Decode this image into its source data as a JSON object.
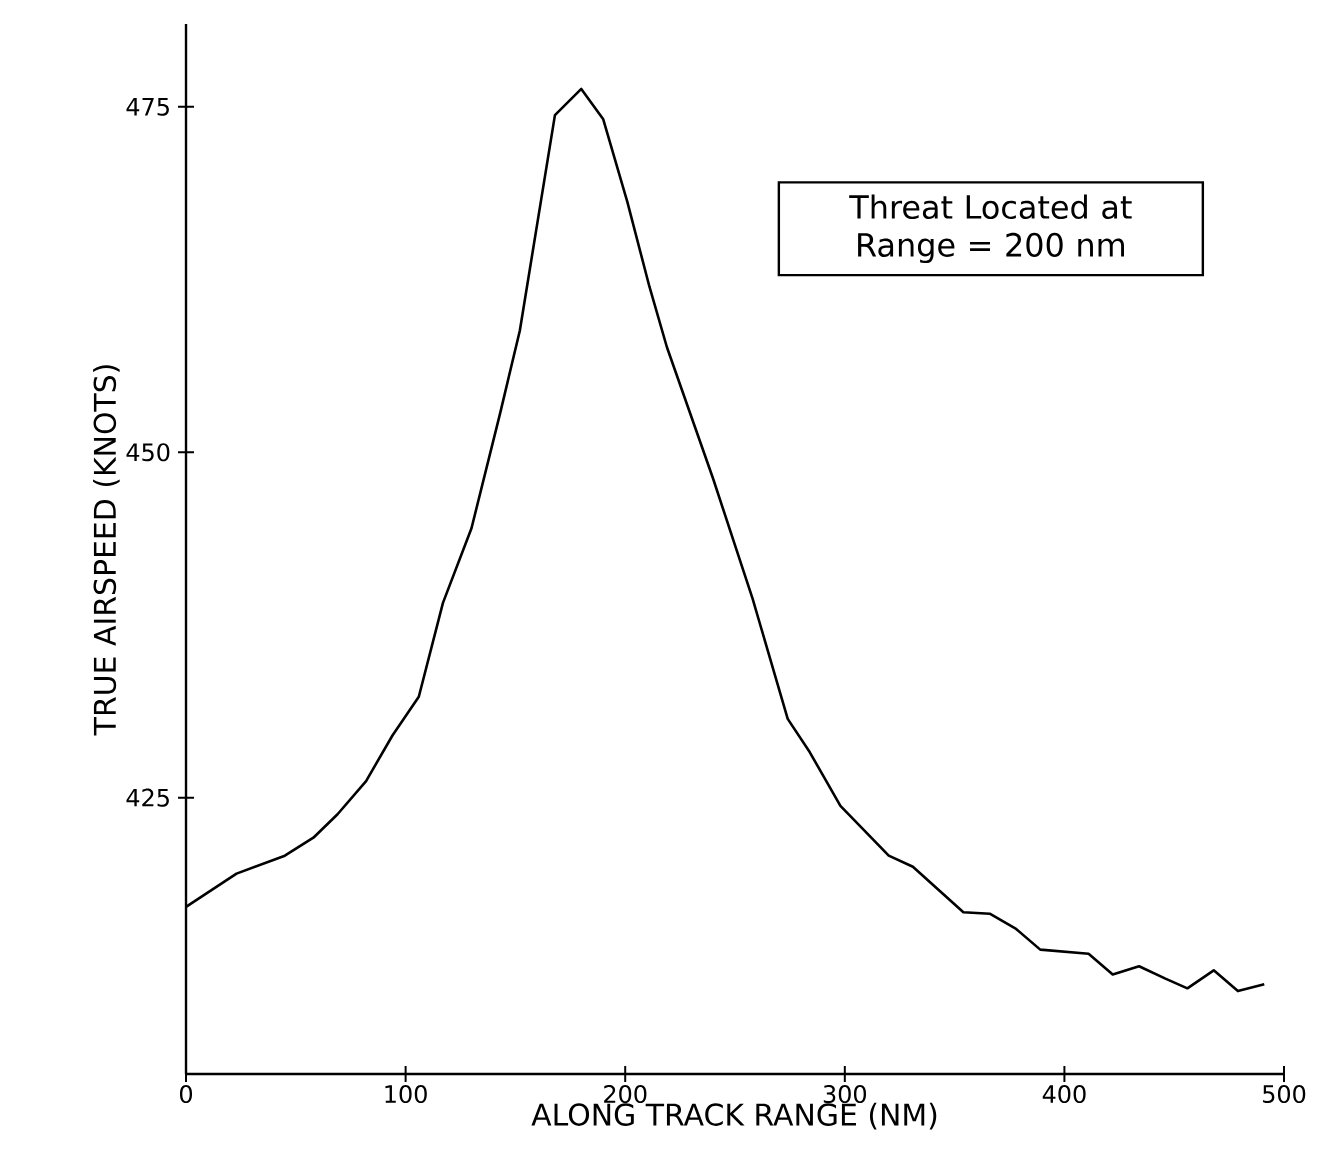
{
  "chart_data": {
    "type": "line",
    "xlabel": "ALONG TRACK RANGE (NM)",
    "ylabel": "TRUE AIRSPEED (KNOTS)",
    "annotations": [
      "Threat Located at Range = 200 nm"
    ],
    "xlim": [
      0,
      500
    ],
    "xticks": [
      0,
      100,
      200,
      300,
      400,
      500
    ],
    "ylim": [
      405,
      481
    ],
    "yticks": [
      425,
      450,
      475
    ],
    "grid": false,
    "marker": "none",
    "line_style": "solid",
    "series": [
      {
        "color": "#000000",
        "x": [
          0,
          23,
          45,
          58,
          69,
          82,
          94,
          106,
          117,
          130,
          143,
          152,
          168,
          180,
          190,
          201,
          211,
          219,
          240,
          258,
          274,
          284,
          298,
          320,
          331,
          354,
          366,
          378,
          389,
          411,
          422,
          434,
          446,
          456,
          468,
          479,
          491
        ],
        "values": [
          417.1,
          419.5,
          420.8,
          422.1,
          423.8,
          426.2,
          429.5,
          432.3,
          439.1,
          444.5,
          452.8,
          458.8,
          474.4,
          476.3,
          474.1,
          468.1,
          462.0,
          457.6,
          448.1,
          439.4,
          430.7,
          428.3,
          424.4,
          420.8,
          420.0,
          416.7,
          416.6,
          415.5,
          414.0,
          413.7,
          412.2,
          412.8,
          411.9,
          411.2,
          412.5,
          411.0,
          411.5
        ]
      }
    ]
  }
}
